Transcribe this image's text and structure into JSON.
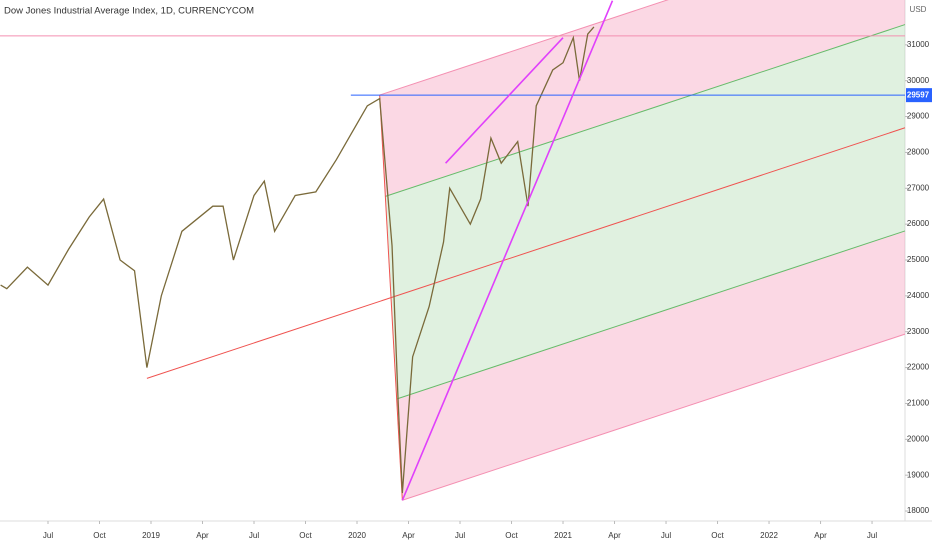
{
  "chart_data": {
    "type": "line",
    "title": "Dow Jones Industrial Average Index, 1D, CURRENCYCOM",
    "currency": "USD",
    "series": [
      {
        "name": "Dow Jones Industrial Average Index",
        "color": "#7a6a3a",
        "x": [
          2018.27,
          2018.3,
          2018.4,
          2018.5,
          2018.6,
          2018.7,
          2018.77,
          2018.85,
          2018.92,
          2018.98,
          2019.05,
          2019.15,
          2019.3,
          2019.35,
          2019.4,
          2019.5,
          2019.55,
          2019.6,
          2019.7,
          2019.8,
          2019.9,
          2019.97,
          2020.05,
          2020.11,
          2020.17,
          2020.2,
          2020.22,
          2020.27,
          2020.35,
          2020.42,
          2020.45,
          2020.55,
          2020.6,
          2020.65,
          2020.7,
          2020.78,
          2020.83,
          2020.87,
          2020.95,
          2021.0,
          2021.05,
          2021.08,
          2021.12,
          2021.15
        ],
        "values": [
          24300,
          24200,
          24800,
          24300,
          25300,
          26200,
          26700,
          25000,
          24700,
          22000,
          24000,
          25800,
          26500,
          26500,
          25000,
          26800,
          27200,
          25800,
          26800,
          26900,
          27800,
          28500,
          29300,
          29500,
          25400,
          21000,
          18500,
          22300,
          23700,
          25500,
          27000,
          26000,
          26700,
          28400,
          27700,
          28300,
          26500,
          29300,
          30300,
          30500,
          31200,
          30000,
          31300,
          31500
        ]
      }
    ],
    "pitchfork": {
      "points": [
        [
          2018.98,
          21700
        ],
        [
          2020.11,
          29600
        ],
        [
          2020.22,
          18300
        ]
      ],
      "band_color": "#f48fb1",
      "inner_color": "#a5d6a7",
      "median_color": "#ef5350"
    },
    "trend_lines": [
      {
        "color": "#e040fb",
        "points": [
          [
            2020.22,
            18300
          ],
          [
            2021.24,
            32230
          ]
        ]
      },
      {
        "color": "#e040fb",
        "points": [
          [
            2020.43,
            27700
          ],
          [
            2021.0,
            31200
          ]
        ]
      }
    ],
    "horizontal_line": {
      "value": 29597,
      "color": "#2962ff",
      "start": 2019.97
    },
    "price_line": {
      "value": 31250,
      "color": "#f48fb1"
    },
    "xlim": [
      2018.267,
      2022.66
    ],
    "xticks": [
      {
        "value": 2018.5,
        "label": "Jul"
      },
      {
        "value": 2018.75,
        "label": "Oct"
      },
      2019,
      {
        "value": 2019.25,
        "label": "Apr"
      },
      {
        "value": 2019.5,
        "label": "Jul"
      },
      {
        "value": 2019.75,
        "label": "Oct"
      },
      2020,
      {
        "value": 2020.25,
        "label": "Apr"
      },
      {
        "value": 2020.5,
        "label": "Jul"
      },
      {
        "value": 2020.75,
        "label": "Oct"
      },
      2021,
      {
        "value": 2021.25,
        "label": "Apr"
      },
      {
        "value": 2021.5,
        "label": "Jul"
      },
      {
        "value": 2021.75,
        "label": "Oct"
      },
      2022,
      {
        "value": 2022.25,
        "label": "Apr"
      },
      {
        "value": 2022.5,
        "label": "Jul"
      }
    ],
    "ylim": [
      17750,
      32250
    ],
    "yticks": [
      18000,
      19000,
      20000,
      21000,
      22000,
      23000,
      24000,
      25000,
      26000,
      27000,
      28000,
      29000,
      30000,
      31000
    ]
  }
}
